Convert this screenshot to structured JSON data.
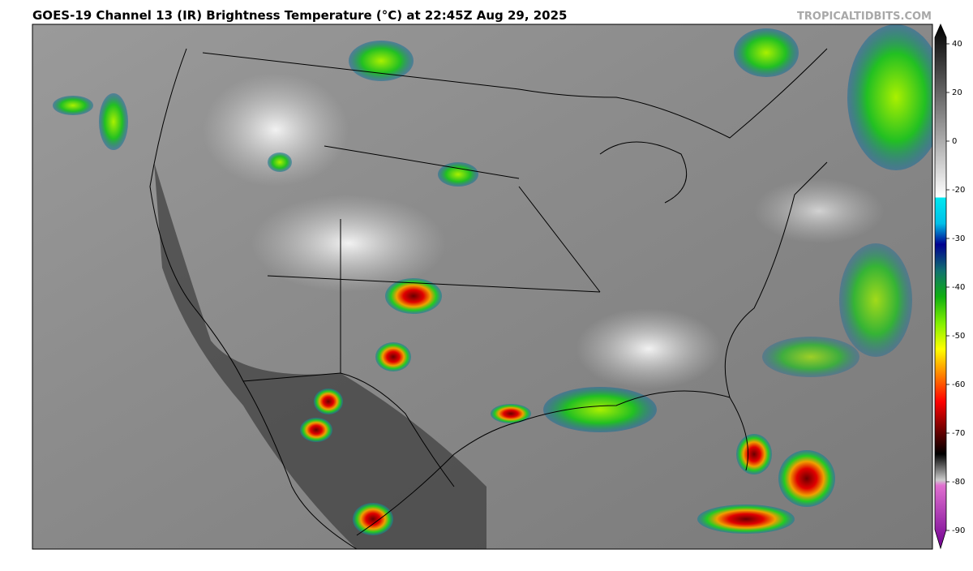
{
  "header": {
    "title": "GOES-19 Channel 13 (IR) Brightness Temperature (°C) at 22:45Z Aug 29, 2025",
    "credit": "TROPICALTIDBITS.COM"
  },
  "colorbar": {
    "ticks": [
      40,
      20,
      0,
      -20,
      -30,
      -40,
      -50,
      -60,
      -70,
      -80,
      -90
    ]
  }
}
